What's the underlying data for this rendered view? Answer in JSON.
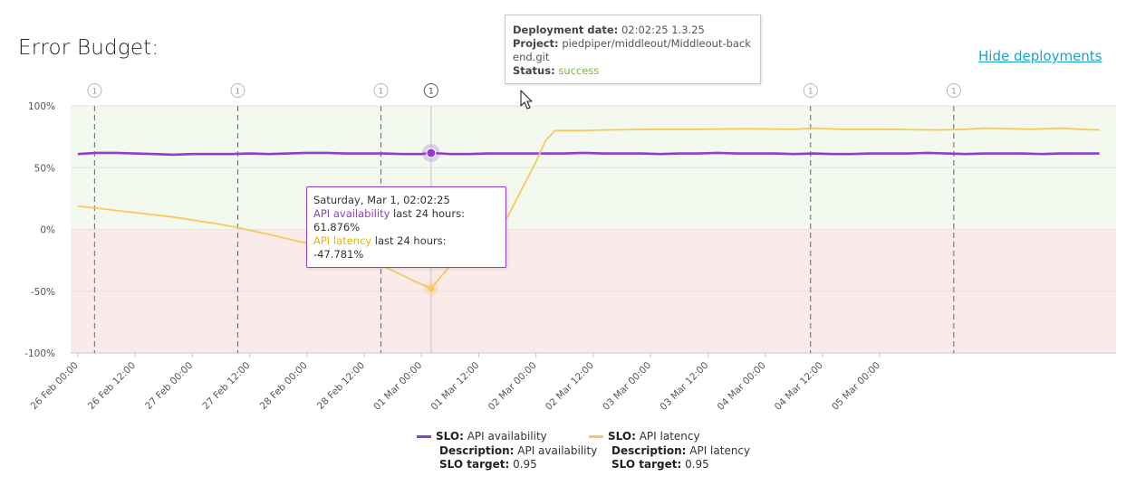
{
  "page": {
    "title": "Error Budget:",
    "hide_link": "Hide deployments"
  },
  "deployment_tooltip": {
    "date_label": "Deployment date:",
    "date_value": "02:02:25 1.3.25",
    "project_label": "Project:",
    "project_value": "piedpiper/middleout/Middleout-backend.git",
    "status_label": "Status:",
    "status_value": "success"
  },
  "point_tooltip": {
    "date": "Saturday, Mar 1, 02:02:25",
    "availability_name": "API availability",
    "availability_suffix": " last 24 hours: 61.876%",
    "latency_name": "API latency",
    "latency_suffix": " last 24 hours: -47.781%"
  },
  "legend": [
    {
      "slo_label": "SLO:",
      "slo_name": "API availability",
      "desc_label": "Description:",
      "desc_value": "API availability",
      "target_label": "SLO target:",
      "target_value": "0.95",
      "color": "#8e3ed0"
    },
    {
      "slo_label": "SLO:",
      "slo_name": "API latency",
      "desc_label": "Description:",
      "desc_value": "API latency",
      "target_label": "SLO target:",
      "target_value": "0.95",
      "color": "#f5c95c"
    }
  ],
  "chart_data": {
    "type": "line",
    "x_ticks": [
      "26 Feb 00:00",
      "26 Feb 12:00",
      "27 Feb 00:00",
      "27 Feb 12:00",
      "28 Feb 00:00",
      "28 Feb 12:00",
      "01 Mar 00:00",
      "01 Mar 12:00",
      "02 Mar 00:00",
      "02 Mar 12:00",
      "03 Mar 00:00",
      "03 Mar 12:00",
      "04 Mar 00:00",
      "04 Mar 12:00",
      "05 Mar 00:00"
    ],
    "xlim_hours": [
      -1.5,
      217.5
    ],
    "y_ticks": [
      "100%",
      "50%",
      "0%",
      "-50%",
      "-100%"
    ],
    "ylim": [
      -100,
      100
    ],
    "positive_band_color": "#f3f9ee",
    "negative_band_color": "#faeaea",
    "deployments_hours": [
      3.5,
      33.5,
      63.5,
      74.0,
      153.5,
      183.5
    ],
    "deployment_marker_label": "1",
    "hover_hours": 74.0,
    "series": [
      {
        "name": "API availability",
        "color": "#8e3ed0",
        "points": [
          [
            0,
            61
          ],
          [
            4,
            62
          ],
          [
            8,
            62
          ],
          [
            12,
            61.5
          ],
          [
            16,
            61
          ],
          [
            20,
            60.5
          ],
          [
            24,
            61
          ],
          [
            28,
            61
          ],
          [
            32,
            61
          ],
          [
            36,
            61.5
          ],
          [
            40,
            61
          ],
          [
            44,
            61.5
          ],
          [
            48,
            62
          ],
          [
            52,
            62
          ],
          [
            56,
            61.5
          ],
          [
            60,
            61.5
          ],
          [
            64,
            61.5
          ],
          [
            68,
            61
          ],
          [
            72,
            61
          ],
          [
            74,
            61.876
          ],
          [
            78,
            61
          ],
          [
            82,
            61
          ],
          [
            86,
            61.5
          ],
          [
            90,
            61.5
          ],
          [
            94,
            61.5
          ],
          [
            98,
            61.5
          ],
          [
            102,
            61.5
          ],
          [
            106,
            62
          ],
          [
            110,
            61.5
          ],
          [
            114,
            61.5
          ],
          [
            118,
            61.5
          ],
          [
            122,
            61
          ],
          [
            126,
            61.5
          ],
          [
            130,
            61.5
          ],
          [
            134,
            62
          ],
          [
            138,
            61.5
          ],
          [
            142,
            61.5
          ],
          [
            146,
            61.5
          ],
          [
            150,
            61
          ],
          [
            154,
            61.5
          ],
          [
            158,
            61
          ],
          [
            162,
            61
          ],
          [
            166,
            61.5
          ],
          [
            170,
            61.5
          ],
          [
            174,
            61.5
          ],
          [
            178,
            62
          ],
          [
            182,
            61.5
          ],
          [
            186,
            61
          ],
          [
            190,
            61.5
          ],
          [
            194,
            61.5
          ],
          [
            198,
            61.5
          ],
          [
            202,
            61
          ],
          [
            206,
            61.5
          ],
          [
            210,
            61.5
          ],
          [
            214,
            61.5
          ]
        ]
      },
      {
        "name": "API latency",
        "color": "#f5c95c",
        "points": [
          [
            0,
            19
          ],
          [
            20,
            10
          ],
          [
            30,
            4
          ],
          [
            34,
            1
          ],
          [
            40,
            -4
          ],
          [
            50,
            -13
          ],
          [
            60,
            -22
          ],
          [
            70,
            -41
          ],
          [
            74,
            -47.781
          ],
          [
            80,
            -20
          ],
          [
            90,
            10
          ],
          [
            96,
            55
          ],
          [
            98,
            72
          ],
          [
            100,
            80
          ],
          [
            106,
            80
          ],
          [
            110,
            80.5
          ],
          [
            120,
            81
          ],
          [
            130,
            81
          ],
          [
            140,
            81.5
          ],
          [
            150,
            81
          ],
          [
            154,
            82
          ],
          [
            160,
            81
          ],
          [
            170,
            81
          ],
          [
            180,
            80.5
          ],
          [
            186,
            81
          ],
          [
            190,
            82
          ],
          [
            200,
            81
          ],
          [
            206,
            82
          ],
          [
            210,
            81
          ],
          [
            214,
            80.5
          ]
        ]
      }
    ]
  }
}
